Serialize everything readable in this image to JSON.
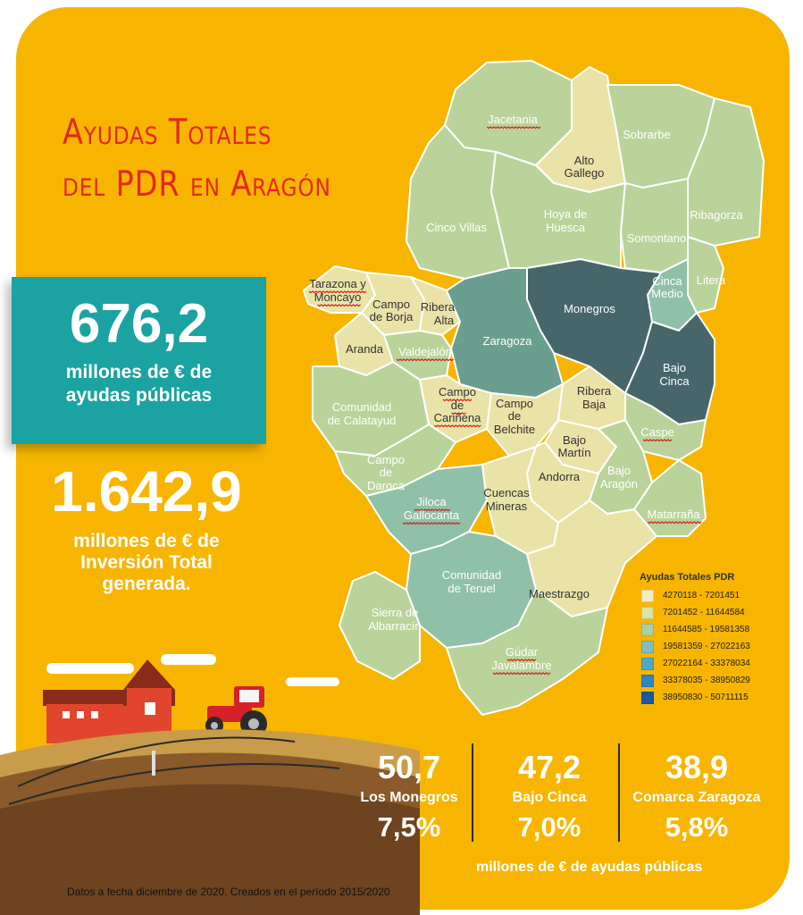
{
  "title": {
    "line1": "Ayudas Totales",
    "line2": "del PDR en Aragón"
  },
  "highlight_public": {
    "value": "676,2",
    "caption_line1": "millones de € de",
    "caption_line2": "ayudas públicas"
  },
  "highlight_investment": {
    "value": "1.642,9",
    "caption_line1": "millones de € de",
    "caption_line2": "Inversión Total",
    "caption_line3": "generada."
  },
  "regions": [
    {
      "name": "Jacetania",
      "class": 2,
      "underline": true
    },
    {
      "name": "Alto Gallego",
      "class": 1
    },
    {
      "name": "Sobrarbe",
      "class": 2
    },
    {
      "name": "Ribagorza",
      "class": 2
    },
    {
      "name": "Cinco Villas",
      "class": 2
    },
    {
      "name": "Hoya de Huesca",
      "class": 2
    },
    {
      "name": "Somontano",
      "class": 2
    },
    {
      "name": "Litera",
      "class": 2
    },
    {
      "name": "Cinca Medio",
      "class": 3
    },
    {
      "name": "Tarazona y Moncayo",
      "class": 1,
      "underline": true
    },
    {
      "name": "Campo de Borja",
      "class": 1
    },
    {
      "name": "Ribera Alta",
      "class": 1
    },
    {
      "name": "Monegros",
      "class": 5
    },
    {
      "name": "Aranda",
      "class": 1
    },
    {
      "name": "Valdejalón",
      "class": 2,
      "underline": true
    },
    {
      "name": "Zaragoza",
      "class": 4
    },
    {
      "name": "Bajo Cinca",
      "class": 5
    },
    {
      "name": "Comunidad de Calatayud",
      "class": 2
    },
    {
      "name": "Campo de Cariñena",
      "class": 1,
      "underline": true
    },
    {
      "name": "Campo de Belchite",
      "class": 1
    },
    {
      "name": "Ribera Baja",
      "class": 1
    },
    {
      "name": "Caspe",
      "class": 2,
      "underline": true
    },
    {
      "name": "Bajo Martín",
      "class": 1
    },
    {
      "name": "Campo de Daroca",
      "class": 2
    },
    {
      "name": "Andorra",
      "class": 1
    },
    {
      "name": "Bajo Aragón",
      "class": 2
    },
    {
      "name": "Jiloca Gallocanta",
      "class": 3,
      "underline": true
    },
    {
      "name": "Cuencas Mineras",
      "class": 1
    },
    {
      "name": "Matarraña",
      "class": 2,
      "underline": true
    },
    {
      "name": "Comunidad de Teruel",
      "class": 3
    },
    {
      "name": "Maestrazgo",
      "class": 1
    },
    {
      "name": "Sierra de Albarracín",
      "class": 2
    },
    {
      "name": "Gúdar Javalambre",
      "class": 2,
      "underline": true
    }
  ],
  "legend": {
    "title": "Ayudas Totales PDR",
    "items": [
      {
        "label": "4270118 - 7201451",
        "color": "#f0eec0"
      },
      {
        "label": "7201452 - 11644584",
        "color": "#d6e4a8"
      },
      {
        "label": "11644585 - 19581358",
        "color": "#a9d0a0"
      },
      {
        "label": "19581359 - 27022163",
        "color": "#7fbfbd"
      },
      {
        "label": "27022164 - 33378034",
        "color": "#4fa8c6"
      },
      {
        "label": "33378035 - 38950829",
        "color": "#2f86c0"
      },
      {
        "label": "38950830 - 50711115",
        "color": "#1a5aa0"
      }
    ]
  },
  "top_regions": [
    {
      "value": "50,7",
      "name": "Los Monegros",
      "percent": "7,5%"
    },
    {
      "value": "47,2",
      "name": "Bajo Cinca",
      "percent": "7,0%"
    },
    {
      "value": "38,9",
      "name": "Comarca Zaragoza",
      "percent": "5,8%"
    }
  ],
  "top_regions_unit": "millones de € de ayudas públicas",
  "source_note": "Datos a fecha diciembre de 2020. Creados en el período 2015/2020"
}
